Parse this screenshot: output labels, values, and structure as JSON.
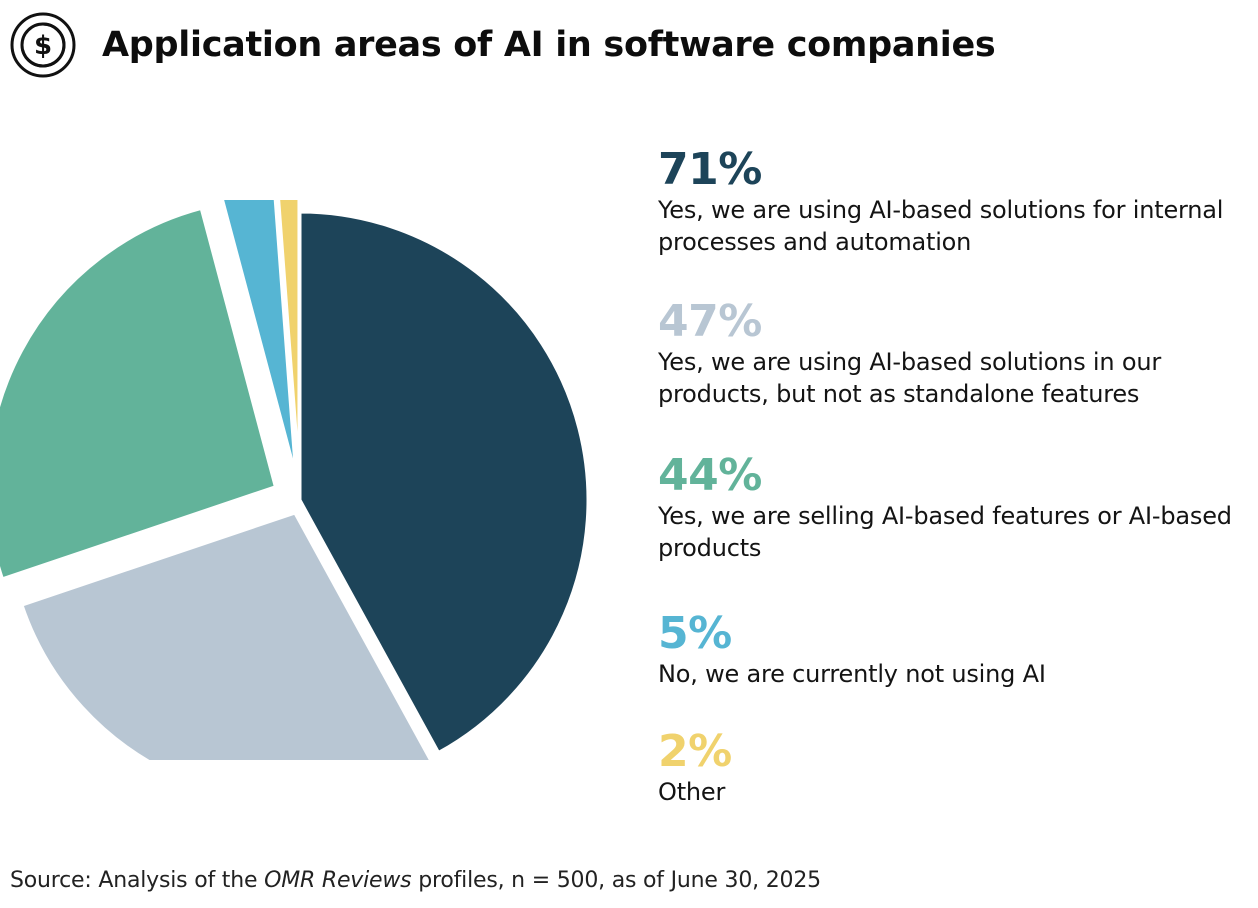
{
  "header": {
    "title": "Application areas of AI in software companies",
    "icon": "dollar-coin-icon"
  },
  "chart_data": {
    "type": "pie",
    "title": "Application areas of AI in software companies",
    "unit": "%",
    "exploded": true,
    "slices": [
      {
        "value": 71,
        "display": "71%",
        "label": "Yes, we are using AI-based solutions for internal processes and automation",
        "color": "#1d4459"
      },
      {
        "value": 47,
        "display": "47%",
        "label": "Yes, we are using AI-based solutions in our products, but not as standalone features",
        "color": "#b8c6d3"
      },
      {
        "value": 44,
        "display": "44%",
        "label": "Yes, we are selling AI-based features or AI-based products",
        "color": "#62b39a"
      },
      {
        "value": 5,
        "display": "5%",
        "label": "No, we are currently not using AI",
        "color": "#56b5d3"
      },
      {
        "value": 2,
        "display": "2%",
        "label": "Other",
        "color": "#f0d26d"
      }
    ]
  },
  "source": {
    "prefix": "Source: Analysis of the ",
    "emphasis": "OMR Reviews",
    "suffix": " profiles, n = 500, as of June 30, 2025"
  }
}
